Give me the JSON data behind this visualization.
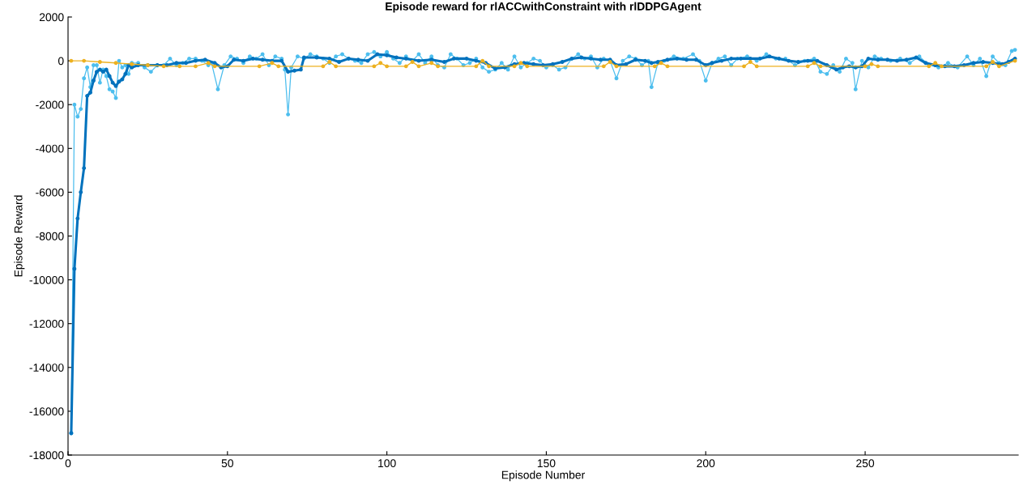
{
  "chart_data": {
    "type": "line",
    "title": "Episode reward for rlACCwithConstraint with rlDDPGAgent",
    "xlabel": "Episode Number",
    "ylabel": "Episode Reward",
    "xlim": [
      0,
      298
    ],
    "xticks": [
      0,
      50,
      100,
      150,
      200,
      250
    ],
    "ylim": [
      -18000,
      2000
    ],
    "yticks": [
      -18000,
      -16000,
      -14000,
      -12000,
      -10000,
      -8000,
      -6000,
      -4000,
      -2000,
      0,
      2000
    ],
    "grid": false,
    "marker": "circle",
    "line_style": "solid",
    "series": [
      {
        "color": "#4dbeee",
        "x": [
          1,
          2,
          3,
          4,
          5,
          6,
          7,
          8,
          9,
          10,
          11,
          12,
          13,
          14,
          15,
          16,
          17,
          18,
          19,
          20,
          22,
          24,
          26,
          28,
          30,
          32,
          34,
          36,
          38,
          40,
          42,
          44,
          45,
          47,
          49,
          51,
          53,
          55,
          57,
          59,
          61,
          63,
          65,
          67,
          68,
          69,
          70,
          72,
          74,
          76,
          78,
          80,
          82,
          84,
          86,
          88,
          90,
          92,
          94,
          96,
          98,
          100,
          102,
          104,
          106,
          108,
          110,
          112,
          114,
          116,
          118,
          120,
          122,
          124,
          126,
          128,
          130,
          132,
          134,
          136,
          138,
          140,
          142,
          144,
          146,
          148,
          150,
          152,
          154,
          156,
          158,
          160,
          162,
          164,
          166,
          168,
          170,
          172,
          174,
          176,
          178,
          180,
          182,
          183,
          185,
          187,
          190,
          193,
          196,
          198,
          200,
          202,
          204,
          206,
          208,
          210,
          213,
          216,
          219,
          222,
          225,
          228,
          231,
          234,
          236,
          238,
          240,
          242,
          244,
          246,
          247,
          249,
          251,
          253,
          255,
          258,
          261,
          264,
          267,
          270,
          273,
          276,
          279,
          282,
          284,
          286,
          288,
          290,
          292,
          294,
          296,
          297
        ],
        "values": [
          -17000,
          -2000,
          -2550,
          -2200,
          -800,
          -300,
          -1200,
          -200,
          -200,
          -1000,
          -400,
          -700,
          -1300,
          -1400,
          -1700,
          0,
          -300,
          -200,
          -600,
          -100,
          -100,
          -300,
          -500,
          -200,
          -200,
          100,
          -200,
          -100,
          100,
          100,
          0,
          -200,
          -100,
          -1300,
          -200,
          200,
          100,
          -100,
          200,
          100,
          300,
          -200,
          200,
          100,
          -400,
          -2450,
          -300,
          200,
          100,
          300,
          200,
          100,
          -100,
          200,
          300,
          100,
          0,
          -100,
          300,
          400,
          200,
          400,
          100,
          -100,
          200,
          0,
          300,
          -100,
          200,
          -200,
          -300,
          300,
          100,
          -200,
          -100,
          100,
          -300,
          -500,
          -400,
          -100,
          -400,
          200,
          -300,
          -100,
          100,
          0,
          -300,
          -200,
          -400,
          -300,
          100,
          300,
          100,
          200,
          -300,
          100,
          0,
          -800,
          0,
          200,
          100,
          -200,
          0,
          -1200,
          -100,
          0,
          200,
          100,
          300,
          0,
          -900,
          -100,
          100,
          200,
          -200,
          100,
          200,
          0,
          300,
          100,
          100,
          -200,
          0,
          100,
          -500,
          -600,
          -200,
          -500,
          100,
          -100,
          -1300,
          0,
          -300,
          200,
          100,
          0,
          100,
          -100,
          200,
          -200,
          -300,
          -100,
          -300,
          200,
          -200,
          100,
          -700,
          200,
          -100,
          -200,
          450,
          500
        ]
      },
      {
        "color": "#0072bd",
        "x": [
          1,
          2,
          3,
          4,
          5,
          6,
          7,
          8,
          9,
          10,
          11,
          12,
          13,
          14,
          15,
          16,
          17,
          18,
          19,
          20,
          22,
          25,
          28,
          31,
          34,
          37,
          40,
          43,
          46,
          48,
          50,
          52,
          55,
          58,
          61,
          64,
          67,
          69,
          71,
          73,
          74,
          78,
          82,
          85,
          88,
          91,
          94,
          97,
          100,
          103,
          106,
          110,
          114,
          118,
          121,
          125,
          128,
          131,
          134,
          137,
          140,
          143,
          146,
          149,
          152,
          155,
          158,
          161,
          164,
          167,
          170,
          172,
          175,
          178,
          181,
          183,
          185,
          188,
          191,
          194,
          197,
          200,
          202,
          205,
          208,
          211,
          214,
          217,
          220,
          223,
          226,
          229,
          232,
          235,
          238,
          241,
          243,
          245,
          247,
          249,
          251,
          254,
          257,
          260,
          263,
          266,
          269,
          272,
          275,
          278,
          281,
          284,
          287,
          290,
          293,
          295,
          297
        ],
        "values": [
          -17000,
          -9500,
          -7200,
          -6000,
          -4900,
          -1600,
          -1450,
          -900,
          -500,
          -400,
          -500,
          -400,
          -700,
          -1000,
          -1150,
          -950,
          -850,
          -600,
          -200,
          -300,
          -200,
          -200,
          -200,
          -200,
          -100,
          -100,
          0,
          50,
          -100,
          -300,
          -250,
          50,
          0,
          100,
          50,
          0,
          0,
          -500,
          -450,
          -400,
          150,
          150,
          100,
          -50,
          100,
          50,
          0,
          300,
          250,
          150,
          100,
          0,
          50,
          -50,
          100,
          100,
          0,
          -100,
          -350,
          -300,
          -150,
          -100,
          -150,
          -200,
          -150,
          -50,
          100,
          150,
          100,
          50,
          50,
          -200,
          -150,
          50,
          0,
          -100,
          -50,
          50,
          100,
          50,
          50,
          -200,
          -100,
          0,
          100,
          100,
          100,
          100,
          200,
          100,
          0,
          -50,
          0,
          0,
          -200,
          -400,
          -300,
          -250,
          -300,
          -250,
          100,
          50,
          50,
          0,
          50,
          150,
          -100,
          -200,
          -250,
          -250,
          -200,
          -100,
          -50,
          -100,
          -150,
          -50,
          100
        ]
      },
      {
        "color": "#edb120",
        "x": [
          1,
          5,
          10,
          15,
          20,
          25,
          30,
          35,
          40,
          44,
          46,
          60,
          64,
          66,
          80,
          82,
          84,
          96,
          98,
          100,
          106,
          108,
          110,
          114,
          116,
          128,
          130,
          132,
          140,
          142,
          144,
          168,
          170,
          172,
          184,
          186,
          188,
          212,
          214,
          216,
          232,
          234,
          236,
          250,
          252,
          254,
          270,
          272,
          274,
          288,
          290,
          292,
          297
        ],
        "values": [
          0,
          0,
          -50,
          -100,
          -150,
          -200,
          -250,
          -250,
          -250,
          -100,
          -250,
          -250,
          -100,
          -250,
          -250,
          -50,
          -250,
          -250,
          -100,
          -250,
          -250,
          -50,
          -250,
          -100,
          -250,
          -250,
          0,
          -250,
          -250,
          -100,
          -250,
          -250,
          -50,
          -250,
          -250,
          -100,
          -250,
          -250,
          -50,
          -250,
          -250,
          -100,
          -250,
          -250,
          -150,
          -250,
          -250,
          -100,
          -250,
          -250,
          -50,
          -250,
          0
        ]
      }
    ]
  }
}
